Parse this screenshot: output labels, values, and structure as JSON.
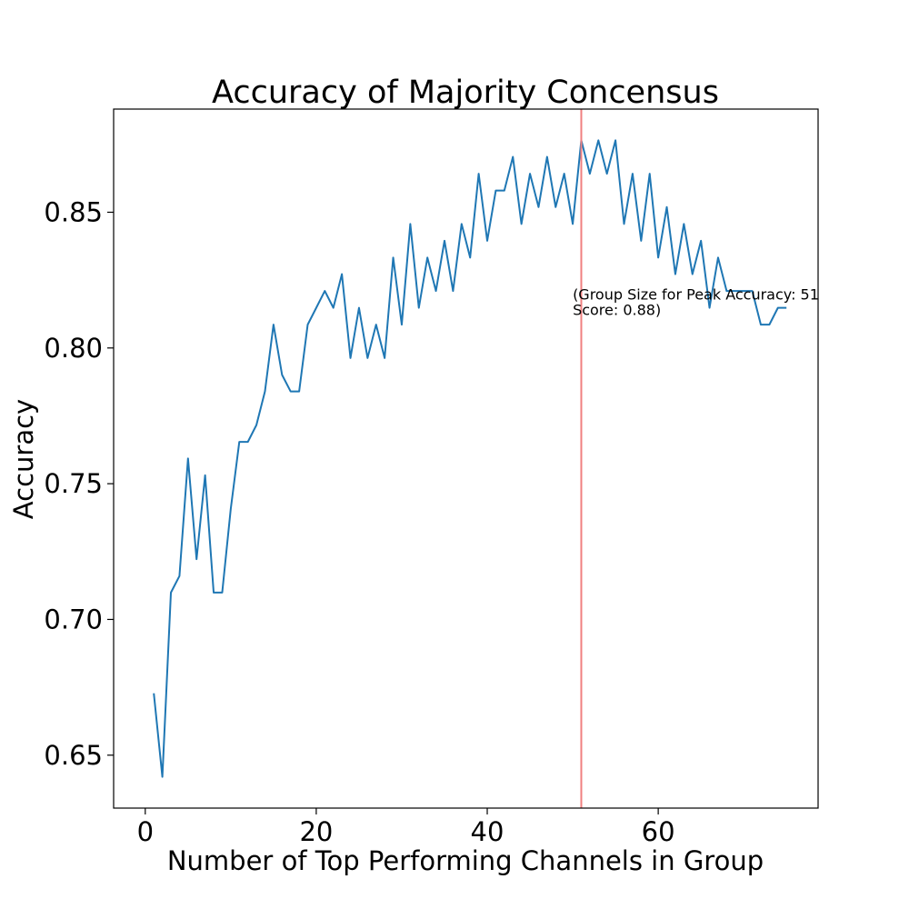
{
  "chart_data": {
    "type": "line",
    "title": "Accuracy of Majority Concensus",
    "xlabel": "Number of Top Performing Channels in Group",
    "ylabel": "Accuracy",
    "xlim": [
      -3.7,
      78.7
    ],
    "ylim": [
      0.6305,
      0.888
    ],
    "xticks": [
      0,
      20,
      40,
      60
    ],
    "xtick_labels": [
      "0",
      "20",
      "40",
      "60"
    ],
    "yticks": [
      0.65,
      0.7,
      0.75,
      0.8,
      0.85
    ],
    "ytick_labels": [
      "0.65",
      "0.70",
      "0.75",
      "0.80",
      "0.85"
    ],
    "grid": false,
    "series": [
      {
        "color": "#1f77b4",
        "x": [
          1,
          2,
          3,
          4,
          5,
          6,
          7,
          8,
          9,
          10,
          11,
          12,
          13,
          14,
          15,
          16,
          17,
          18,
          19,
          20,
          21,
          22,
          23,
          24,
          25,
          26,
          27,
          28,
          29,
          30,
          31,
          32,
          33,
          34,
          35,
          36,
          37,
          38,
          39,
          40,
          41,
          42,
          43,
          44,
          45,
          46,
          47,
          48,
          49,
          50,
          51,
          52,
          53,
          54,
          55,
          56,
          57,
          58,
          59,
          60,
          61,
          62,
          63,
          64,
          65,
          66,
          67,
          68,
          69,
          70,
          71,
          72,
          73,
          74,
          75
        ],
        "y": [
          0.6728,
          0.642,
          0.7099,
          0.716,
          0.7593,
          0.7222,
          0.7531,
          0.7099,
          0.7099,
          0.7407,
          0.7654,
          0.7654,
          0.7716,
          0.784,
          0.8086,
          0.7901,
          0.784,
          0.784,
          0.8086,
          0.8148,
          0.821,
          0.8148,
          0.8272,
          0.7963,
          0.8148,
          0.7963,
          0.8086,
          0.7963,
          0.8333,
          0.8086,
          0.8457,
          0.8148,
          0.8333,
          0.821,
          0.8395,
          0.821,
          0.8457,
          0.8333,
          0.8642,
          0.8395,
          0.858,
          0.858,
          0.8704,
          0.8457,
          0.8642,
          0.8519,
          0.8704,
          0.8519,
          0.8642,
          0.8457,
          0.8765,
          0.8642,
          0.8765,
          0.8642,
          0.8765,
          0.8457,
          0.8642,
          0.8395,
          0.8642,
          0.8333,
          0.8519,
          0.8272,
          0.8457,
          0.8272,
          0.8395,
          0.8148,
          0.8333,
          0.821,
          0.821,
          0.821,
          0.821,
          0.8086,
          0.8086,
          0.8148,
          0.8148
        ]
      }
    ],
    "vline": {
      "x": 51,
      "color": "#f08080"
    },
    "annotation": {
      "line1": "(Group Size for Peak Accuracy: 51",
      "line2": "Score: 0.88)",
      "x": 50,
      "y": 0.8198
    }
  }
}
